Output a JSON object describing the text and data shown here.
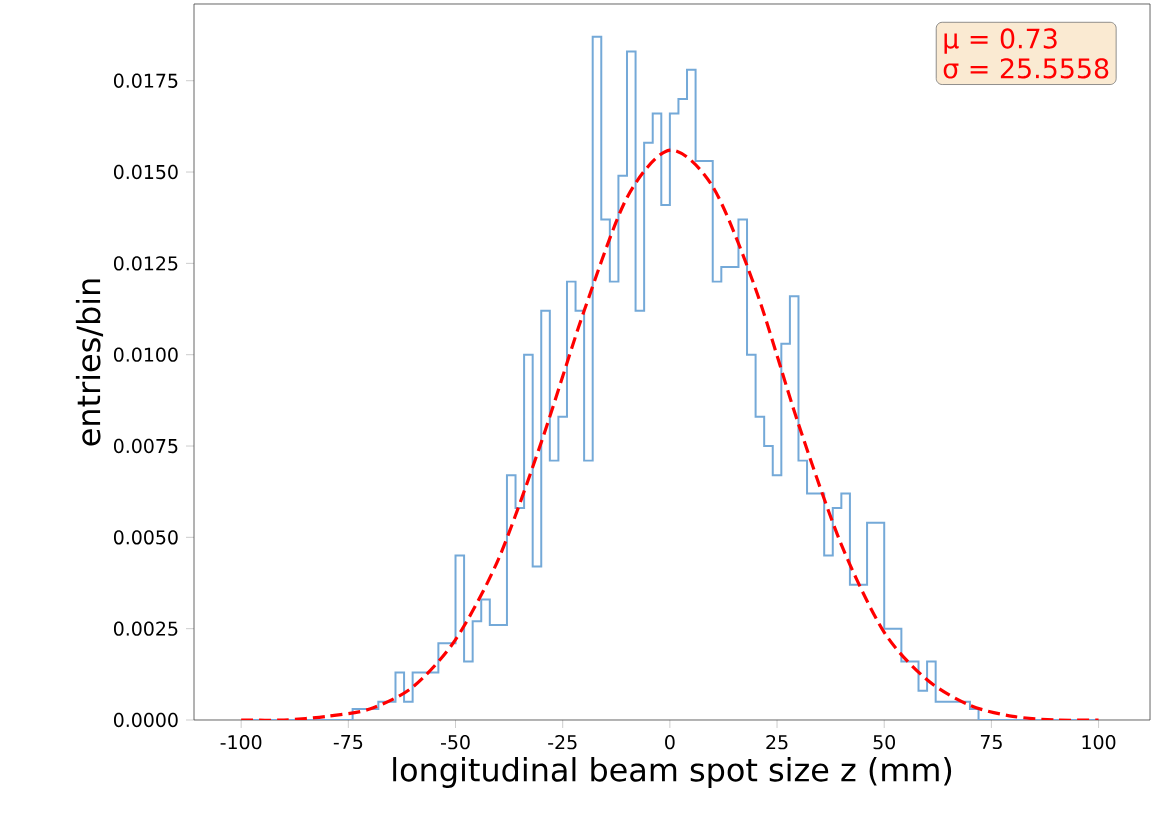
{
  "chart_data": {
    "type": "histogram",
    "xlabel": "longitudinal beam spot size  z (mm)",
    "ylabel": "entries/bin",
    "annotations": [
      "μ = 0.73",
      "σ = 25.5558"
    ],
    "xlim": [
      -111,
      112
    ],
    "ylim": [
      0,
      0.0196
    ],
    "xticks": [
      -100,
      -75,
      -50,
      -25,
      0,
      25,
      50,
      75,
      100
    ],
    "yticks": [
      {
        "value": 0,
        "label": "0.0000"
      },
      {
        "value": 0.0025,
        "label": "0.0025"
      },
      {
        "value": 0.005,
        "label": "0.0050"
      },
      {
        "value": 0.0075,
        "label": "0.0075"
      },
      {
        "value": 0.01,
        "label": "0.0100"
      },
      {
        "value": 0.0125,
        "label": "0.0125"
      },
      {
        "value": 0.015,
        "label": "0.0150"
      },
      {
        "value": 0.0175,
        "label": "0.0175"
      }
    ],
    "grid": false,
    "series": [
      {
        "color": "#74a9d8",
        "bins": [
          -100,
          -98,
          -96,
          -94,
          -92,
          -90,
          -88,
          -86,
          -84,
          -82,
          -80,
          -78,
          -76,
          -74,
          -72,
          -70,
          -68,
          -66,
          -64,
          -62,
          -60,
          -58,
          -56,
          -54,
          -52,
          -50,
          -48,
          -46,
          -44,
          -42,
          -40,
          -38,
          -36,
          -34,
          -32,
          -30,
          -28,
          -26,
          -24,
          -22,
          -20,
          -18,
          -16,
          -14,
          -12,
          -10,
          -8,
          -6,
          -4,
          -2,
          0,
          2,
          4,
          6,
          8,
          10,
          12,
          14,
          16,
          18,
          20,
          22,
          24,
          26,
          28,
          30,
          32,
          34,
          36,
          38,
          40,
          42,
          44,
          46,
          48,
          50,
          52,
          54,
          56,
          58,
          60,
          62,
          64,
          66,
          68,
          70,
          72,
          74,
          76,
          78,
          80,
          82,
          84,
          86,
          88,
          90,
          92,
          94,
          96,
          98,
          100
        ],
        "values": [
          0,
          0,
          0,
          0,
          0,
          0,
          0,
          0,
          0,
          0,
          0,
          0,
          0,
          0.0003,
          0.0003,
          0.0003,
          0.0005,
          0.0005,
          0.0013,
          0.0005,
          0.0013,
          0.0013,
          0.0013,
          0.0021,
          0.0021,
          0.0045,
          0.0016,
          0.0027,
          0.0033,
          0.0026,
          0.0026,
          0.0067,
          0.0058,
          0.01,
          0.0042,
          0.0112,
          0.0071,
          0.0083,
          0.012,
          0.0112,
          0.0071,
          0.0187,
          0.0137,
          0.012,
          0.0149,
          0.0183,
          0.0112,
          0.0158,
          0.0166,
          0.0141,
          0.0166,
          0.017,
          0.0178,
          0.0153,
          0.0153,
          0.012,
          0.0124,
          0.0124,
          0.0137,
          0.01,
          0.0083,
          0.0075,
          0.0067,
          0.0103,
          0.0116,
          0.0071,
          0.0062,
          0.0062,
          0.0045,
          0.0058,
          0.0062,
          0.0037,
          0.0037,
          0.0054,
          0.0054,
          0.0025,
          0.0025,
          0.0016,
          0.0016,
          0.0008,
          0.0016,
          0.0005,
          0.0005,
          0.0005,
          0.0005,
          0.0003,
          0,
          0,
          0,
          0,
          0,
          0,
          0,
          0,
          0,
          0,
          0,
          0,
          0,
          0
        ]
      },
      {
        "type": "line",
        "color": "#ff0000",
        "line_style": "dashed",
        "marker": "none",
        "x": [
          -100,
          -90,
          -80,
          -70,
          -60,
          -50,
          -40,
          -30,
          -20,
          -10,
          0,
          10,
          20,
          30,
          40,
          50,
          60,
          70,
          80,
          90,
          100
        ],
        "values": [
          0.0,
          0.0,
          0.0001,
          0.0003,
          0.0009,
          0.0022,
          0.0044,
          0.0076,
          0.0112,
          0.0143,
          0.0156,
          0.0146,
          0.0118,
          0.0081,
          0.0048,
          0.0024,
          0.0011,
          0.0004,
          0.0001,
          0.0,
          0.0
        ]
      }
    ]
  }
}
